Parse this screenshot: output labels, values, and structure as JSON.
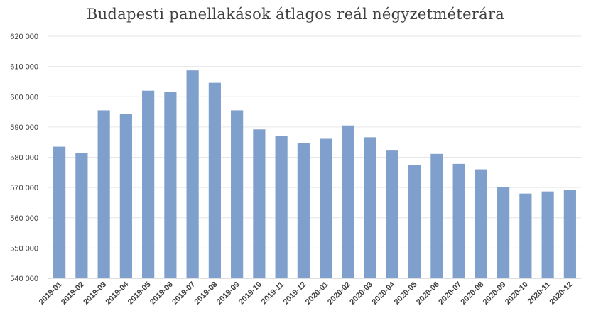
{
  "chart_data": {
    "type": "bar",
    "title": "Budapesti panellakások átlagos reál négyzetméterára",
    "xlabel": "",
    "ylabel": "",
    "ylim": [
      540000,
      620000
    ],
    "yticks": [
      540000,
      550000,
      560000,
      570000,
      580000,
      590000,
      600000,
      610000,
      620000
    ],
    "ytick_labels": [
      "540 000",
      "550 000",
      "560 000",
      "570 000",
      "580 000",
      "590 000",
      "600 000",
      "610 000",
      "620 000"
    ],
    "grid": "horizontal",
    "legend": "none",
    "bar_color": "#7F9FCC",
    "categories": [
      "2019-01",
      "2019-02",
      "2019-03",
      "2019-04",
      "2019-05",
      "2019-06",
      "2019-07",
      "2019-08",
      "2019-09",
      "2019-10",
      "2019-11",
      "2019-12",
      "2020-01",
      "2020-02",
      "2020-03",
      "2020-04",
      "2020-05",
      "2020-06",
      "2020-07",
      "2020-08",
      "2020-09",
      "2020-10",
      "2020-11",
      "2020-12"
    ],
    "values": [
      583500,
      581500,
      595500,
      594300,
      602000,
      601600,
      608700,
      604600,
      595500,
      589200,
      587000,
      584700,
      586100,
      590500,
      586600,
      582200,
      577500,
      581100,
      577800,
      576000,
      570100,
      568000,
      568700,
      569200
    ]
  }
}
